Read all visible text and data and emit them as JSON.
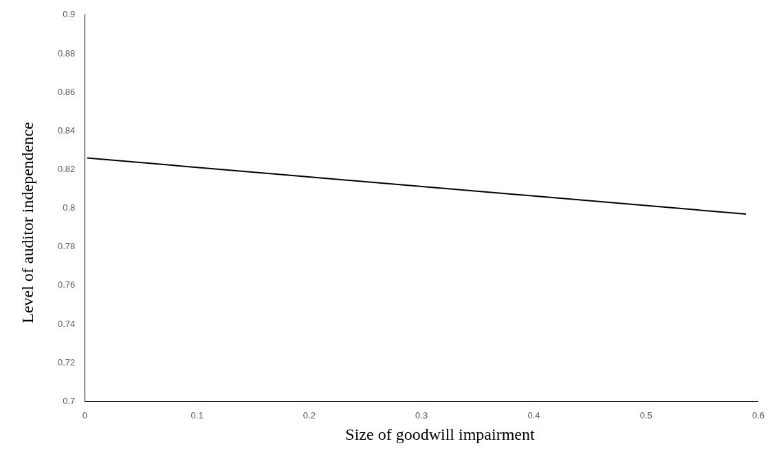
{
  "chart_data": {
    "type": "line",
    "xlabel": "Size of goodwill impairment",
    "ylabel": "Level of auditor independence",
    "series": [
      {
        "color": "#000000",
        "x": [
          0.002,
          0.589
        ],
        "values": [
          0.826,
          0.797
        ]
      }
    ],
    "xlim": [
      0,
      0.6
    ],
    "xticks": [
      0,
      0.1,
      0.2,
      0.3,
      0.4,
      0.5,
      0.6
    ],
    "ylim": [
      0.7,
      0.9
    ],
    "yticks": [
      0.7,
      0.72,
      0.74,
      0.76,
      0.78,
      0.8,
      0.82,
      0.84,
      0.86,
      0.88,
      0.9
    ],
    "grid": false,
    "legend": false,
    "marker": "none",
    "line_style": "solid"
  }
}
